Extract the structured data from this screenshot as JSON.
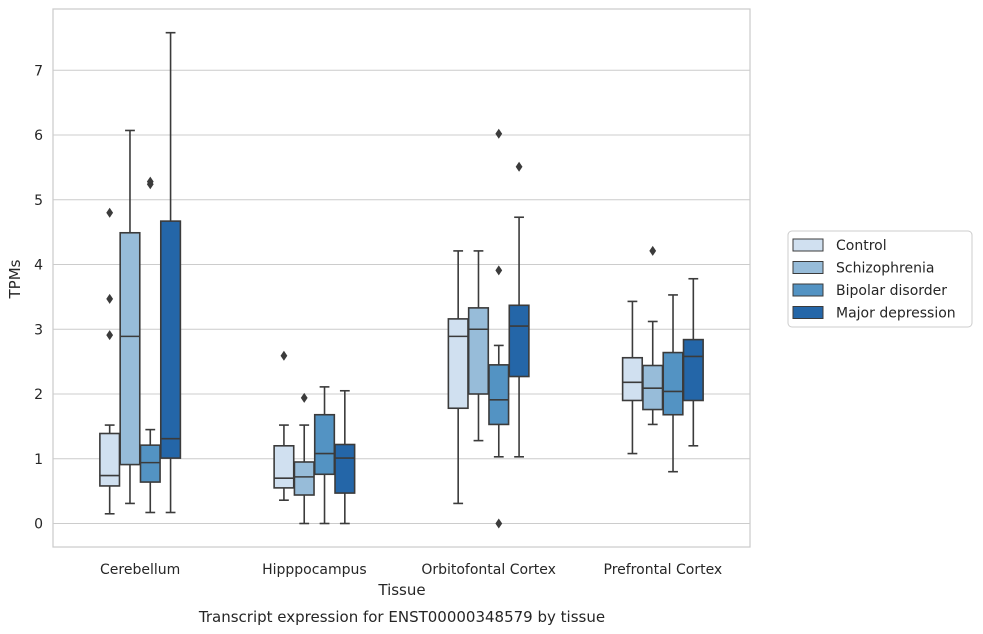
{
  "caption": "Transcript expression for ENST00000348579 by tissue",
  "chart_data": {
    "type": "boxplot",
    "xlabel": "Tissue",
    "ylabel": "TPMs",
    "ylim": [
      -0.37,
      7.97
    ],
    "yticks": [
      0,
      1,
      2,
      3,
      4,
      5,
      6,
      7
    ],
    "grid": "horizontal",
    "legend_position": "right",
    "categories": [
      "Cerebellum",
      "Hipppocampus",
      "Orbitofontal Cortex",
      "Prefrontal Cortex"
    ],
    "series": [
      {
        "name": "Control",
        "color": "#d0e0f0",
        "boxes": [
          {
            "min": 0.15,
            "q1": 0.58,
            "median": 0.74,
            "q3": 1.39,
            "max": 1.52,
            "outliers": [
              4.8,
              3.47,
              2.91
            ]
          },
          {
            "min": 0.36,
            "q1": 0.55,
            "median": 0.7,
            "q3": 1.2,
            "max": 1.52,
            "outliers": [
              2.59
            ]
          },
          {
            "min": 0.31,
            "q1": 1.78,
            "median": 2.89,
            "q3": 3.16,
            "max": 4.21,
            "outliers": []
          },
          {
            "min": 1.08,
            "q1": 1.9,
            "median": 2.18,
            "q3": 2.56,
            "max": 3.43,
            "outliers": []
          }
        ]
      },
      {
        "name": "Schizophrenia",
        "color": "#97bcd9",
        "boxes": [
          {
            "min": 0.31,
            "q1": 0.91,
            "median": 2.89,
            "q3": 4.49,
            "max": 6.07,
            "outliers": []
          },
          {
            "min": 0.0,
            "q1": 0.44,
            "median": 0.72,
            "q3": 0.95,
            "max": 1.52,
            "outliers": [
              1.94
            ]
          },
          {
            "min": 1.28,
            "q1": 2.0,
            "median": 3.0,
            "q3": 3.33,
            "max": 4.21,
            "outliers": []
          },
          {
            "min": 1.53,
            "q1": 1.76,
            "median": 2.09,
            "q3": 2.44,
            "max": 3.12,
            "outliers": [
              4.21
            ]
          }
        ]
      },
      {
        "name": "Bipolar disorder",
        "color": "#5393c3",
        "boxes": [
          {
            "min": 0.17,
            "q1": 0.64,
            "median": 0.94,
            "q3": 1.21,
            "max": 1.45,
            "outliers": [
              5.24,
              5.28
            ]
          },
          {
            "min": 0.0,
            "q1": 0.76,
            "median": 1.08,
            "q3": 1.68,
            "max": 2.11,
            "outliers": []
          },
          {
            "min": 1.03,
            "q1": 1.53,
            "median": 1.91,
            "q3": 2.45,
            "max": 2.75,
            "outliers": [
              3.91,
              6.02,
              0.0
            ]
          },
          {
            "min": 0.8,
            "q1": 1.68,
            "median": 2.04,
            "q3": 2.64,
            "max": 3.53,
            "outliers": []
          }
        ]
      },
      {
        "name": "Major depression",
        "color": "#2466a8",
        "boxes": [
          {
            "min": 0.17,
            "q1": 1.01,
            "median": 1.31,
            "q3": 4.67,
            "max": 7.58,
            "outliers": []
          },
          {
            "min": 0.0,
            "q1": 0.47,
            "median": 1.01,
            "q3": 1.22,
            "max": 2.05,
            "outliers": []
          },
          {
            "min": 1.03,
            "q1": 2.27,
            "median": 3.05,
            "q3": 3.37,
            "max": 4.73,
            "outliers": [
              5.51
            ]
          },
          {
            "min": 1.2,
            "q1": 1.9,
            "median": 2.58,
            "q3": 2.84,
            "max": 3.78,
            "outliers": []
          }
        ]
      }
    ]
  }
}
